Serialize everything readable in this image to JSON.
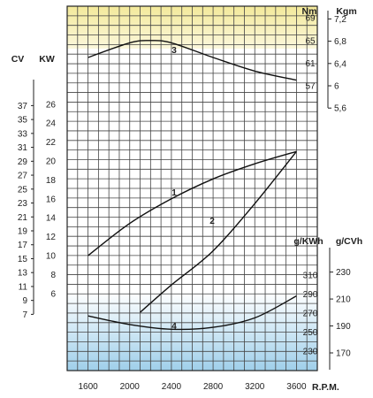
{
  "chart_data": {
    "type": "line",
    "xlabel": "R.P.M.",
    "x_ticks": [
      1600,
      2000,
      2400,
      2800,
      3200,
      3600
    ],
    "xlim": [
      1400,
      3800
    ],
    "colors": {
      "top_band": "#f5efae",
      "bottom_band": "#a9d4ec",
      "grid": "#444444",
      "curve": "#111111"
    },
    "axes": {
      "kw": {
        "unit": "KW",
        "ticks": [
          6,
          8,
          10,
          12,
          14,
          16,
          18,
          20,
          22,
          24,
          26
        ]
      },
      "cv": {
        "unit": "CV",
        "ticks": [
          7,
          9,
          11,
          13,
          15,
          17,
          19,
          21,
          23,
          25,
          27,
          29,
          31,
          33,
          35,
          37
        ]
      },
      "nm": {
        "unit": "Nm",
        "ticks": [
          57,
          61,
          65,
          69
        ]
      },
      "kgm": {
        "unit": "Kgm",
        "ticks": [
          "5,6",
          "6",
          "6,4",
          "6,8",
          "7,2"
        ],
        "tick_values": [
          5.6,
          6.0,
          6.4,
          6.8,
          7.2
        ]
      },
      "gkwh": {
        "unit": "g/KWh",
        "ticks": [
          230,
          250,
          270,
          290,
          310
        ]
      },
      "gcvh": {
        "unit": "g/CVh",
        "ticks": [
          170,
          190,
          210,
          230
        ]
      }
    },
    "series": [
      {
        "label": "1",
        "axis": "kw",
        "x": [
          1600,
          2000,
          2400,
          2800,
          3200,
          3600
        ],
        "y": [
          10,
          13.4,
          16,
          18.1,
          19.7,
          21
        ]
      },
      {
        "label": "2",
        "axis": "kw",
        "x": [
          2100,
          2400,
          2800,
          3200,
          3600
        ],
        "y": [
          4,
          6.9,
          10.5,
          15.5,
          21
        ]
      },
      {
        "label": "3",
        "axis": "nm",
        "x": [
          1600,
          2000,
          2200,
          2400,
          2800,
          3200,
          3600
        ],
        "y": [
          62,
          64.6,
          65,
          64.6,
          62,
          59.6,
          58
        ]
      },
      {
        "label": "4",
        "axis": "gkwh",
        "x": [
          1600,
          2000,
          2400,
          2800,
          3200,
          3600
        ],
        "y": [
          267,
          258,
          253,
          255,
          265,
          288
        ]
      }
    ]
  }
}
